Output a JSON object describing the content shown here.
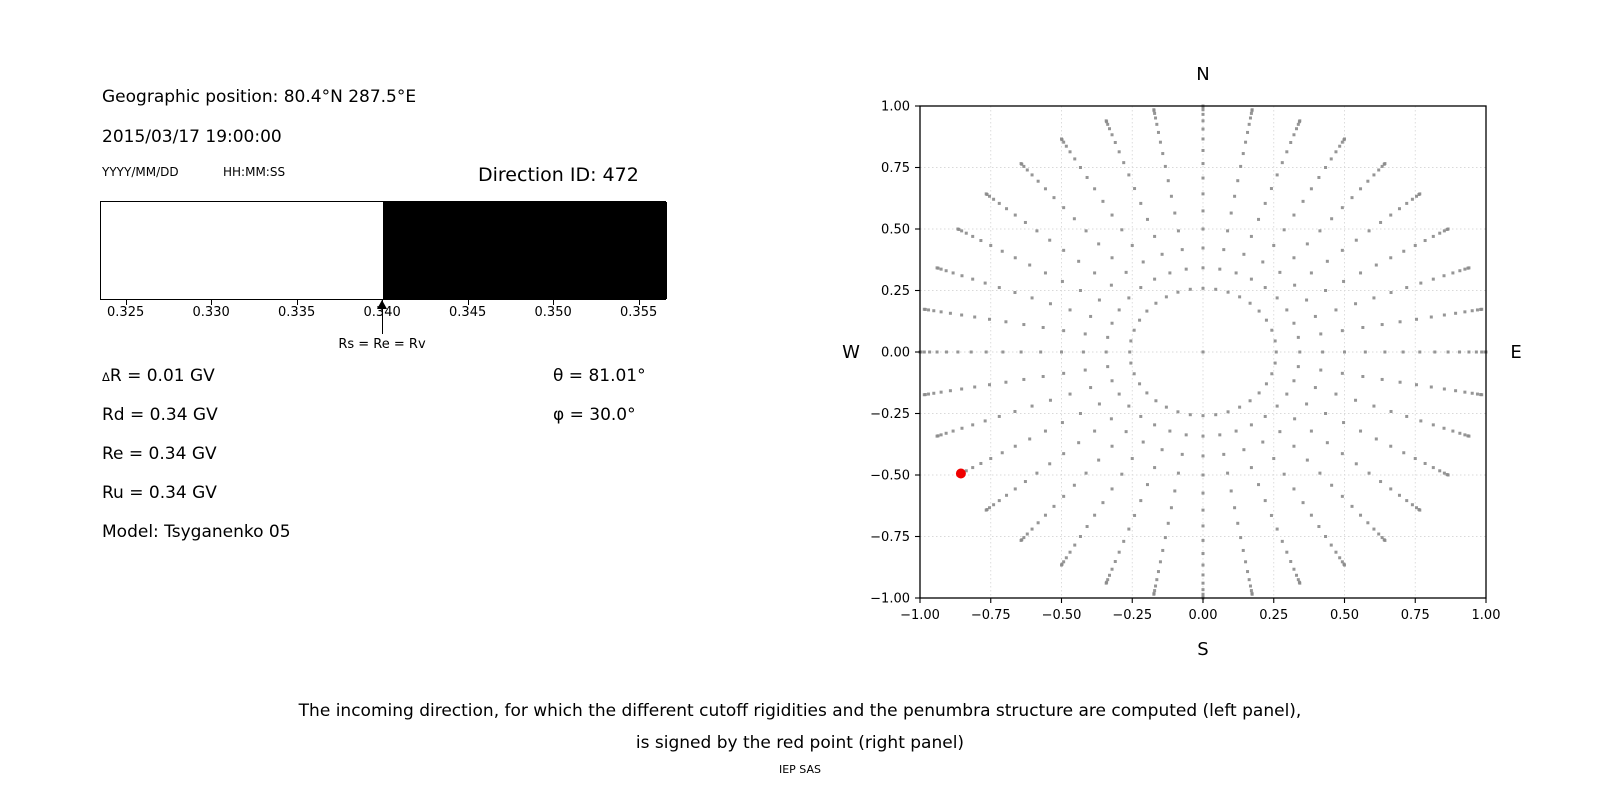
{
  "left_panel": {
    "geographic_position": "Geographic position: 80.4°N 287.5°E",
    "datetime": "2015/03/17 19:00:00",
    "date_format_label": "YYYY/MM/DD",
    "time_format_label": "HH:MM:SS",
    "direction_id": "Direction ID: 472",
    "values_left": [
      {
        "small": "Δ",
        "text": "R = 0.01 GV"
      },
      {
        "small": "",
        "text": "Rd = 0.34 GV"
      },
      {
        "small": "",
        "text": "Re = 0.34 GV"
      },
      {
        "small": "",
        "text": "Ru = 0.34 GV"
      },
      {
        "small": "",
        "text": "Model: Tsyganenko 05"
      }
    ],
    "values_right": [
      {
        "sym": "θ",
        "rest": " = 81.01°"
      },
      {
        "sym": "φ",
        "rest": " = 30.0°"
      }
    ]
  },
  "caption": {
    "line1": "The incoming direction, for which the different cutoff rigidities and the penumbra structure are computed (left panel),",
    "line2": "is signed by the red point (right panel)",
    "credit": "IEP SAS"
  },
  "chart_data": [
    {
      "id": "penumbra-band-chart",
      "type": "bar",
      "description": "Penumbra structure: allowed (white) vs forbidden (black) rigidity bands",
      "xlim": [
        0.3235,
        0.3566
      ],
      "x_tick_values": [
        0.325,
        0.33,
        0.335,
        0.34,
        0.345,
        0.35,
        0.355
      ],
      "x_tick_labels": [
        "0.325",
        "0.330",
        "0.335",
        "0.340",
        "0.345",
        "0.350",
        "0.355"
      ],
      "bands": [
        {
          "x0": 0.3235,
          "x1": 0.34,
          "color": "#ffffff",
          "meaning": "allowed"
        },
        {
          "x0": 0.34,
          "x1": 0.3566,
          "color": "#000000",
          "meaning": "forbidden"
        }
      ],
      "annotation": {
        "label": "Rs = Re = Rv",
        "x": 0.34
      },
      "units": "GV"
    },
    {
      "id": "direction-map",
      "type": "scatter",
      "description": "Sky map of computed incoming directions; r = sin(zenith), azimuth spokes",
      "compass_labels": {
        "top": "N",
        "bottom": "S",
        "left": "W",
        "right": "E"
      },
      "xlim": [
        -1.0,
        1.0
      ],
      "ylim": [
        -1.0,
        1.0
      ],
      "x_tick_values": [
        -1.0,
        -0.75,
        -0.5,
        -0.25,
        0.0,
        0.25,
        0.5,
        0.75,
        1.0
      ],
      "x_tick_labels": [
        "−1.00",
        "−0.75",
        "−0.50",
        "−0.25",
        "0.00",
        "0.25",
        "0.50",
        "0.75",
        "1.00"
      ],
      "y_tick_values": [
        -1.0,
        -0.75,
        -0.5,
        -0.25,
        0.0,
        0.25,
        0.5,
        0.75,
        1.0
      ],
      "y_tick_labels": [
        "−1.00",
        "−0.75",
        "−0.50",
        "−0.25",
        "0.00",
        "0.25",
        "0.50",
        "0.75",
        "1.00"
      ],
      "grid_on": true,
      "direction_grid": {
        "includes_center_point": true,
        "azimuth_start_deg": 0,
        "azimuth_step_deg": 10,
        "azimuth_count": 36,
        "zenith_start_deg": 15,
        "zenith_step_deg": 5,
        "zenith_end_deg": 90,
        "radius_rule": "r = sin(zenith); x = r*cos(azimuth), y = r*sin(azimuth)"
      },
      "dot_color": "#8b8b8b",
      "red_point": {
        "x": -0.8554,
        "y": -0.4939,
        "zenith_deg": 81.01,
        "azimuth_plot_angle_deg": 210.0,
        "color": "#f00000",
        "meaning": "selected incoming direction (ID 472)"
      }
    }
  ]
}
